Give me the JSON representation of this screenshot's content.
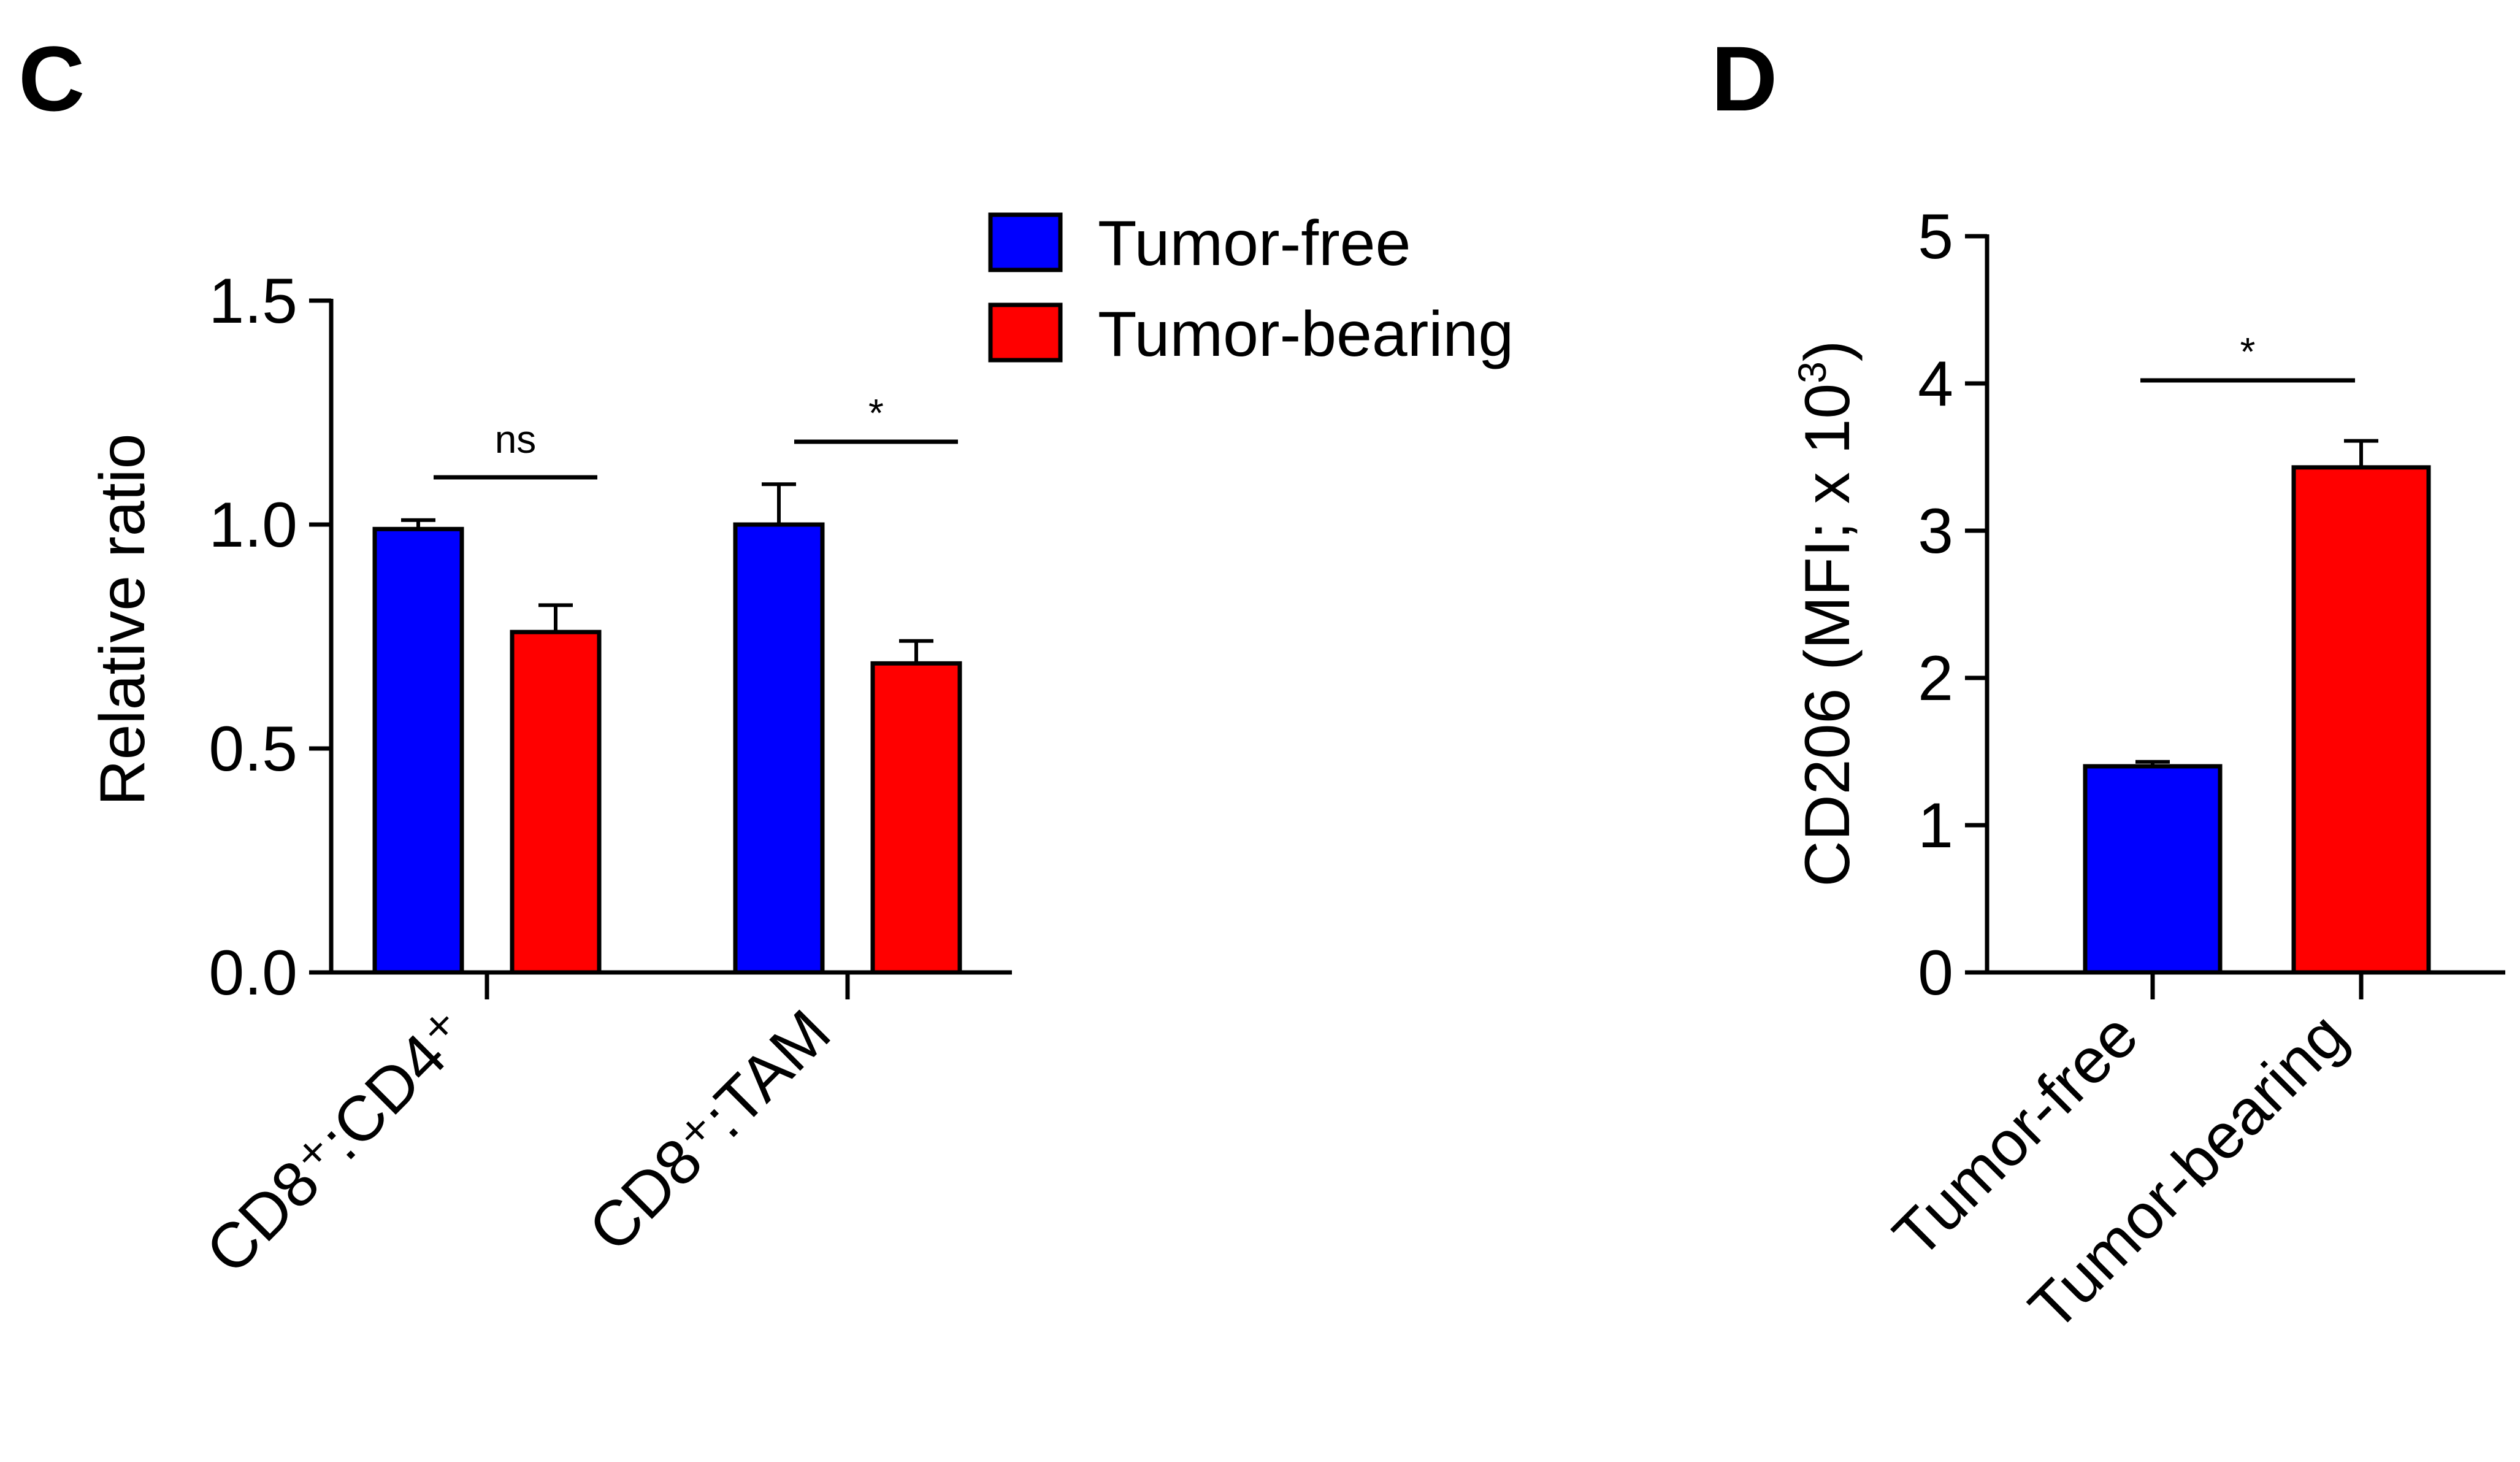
{
  "panels": [
    {
      "panel_label": "C",
      "legend": [
        {
          "label": "Tumor-free",
          "color": "#0000ff"
        },
        {
          "label": "Tumor-bearing",
          "color": "#ff0000"
        }
      ],
      "chart_data": {
        "type": "bar",
        "categories": [
          "CD8⁺:CD4⁺",
          "CD8⁺:TAM"
        ],
        "series": [
          {
            "name": "Tumor-free",
            "values": [
              0.99,
              1.0
            ],
            "errors": [
              0.02,
              0.09
            ],
            "color": "#0000ff"
          },
          {
            "name": "Tumor-bearing",
            "values": [
              0.76,
              0.69
            ],
            "errors": [
              0.06,
              0.05
            ],
            "color": "#ff0000"
          }
        ],
        "ylabel": "Relative ratio",
        "ylim": [
          0,
          1.5
        ],
        "yticks": [
          0.0,
          0.5,
          1.0,
          1.5
        ],
        "ytick_labels": [
          "0.0",
          "0.5",
          "1.0",
          "1.5"
        ],
        "significance": [
          "ns",
          "*"
        ]
      }
    },
    {
      "panel_label": "D",
      "chart_data": {
        "type": "bar",
        "categories": [
          "Tumor-free",
          "Tumor-bearing"
        ],
        "values": [
          1.4,
          3.43
        ],
        "errors": [
          0.03,
          0.18
        ],
        "colors": [
          "#0000ff",
          "#ff0000"
        ],
        "ylabel_main": "CD206 (MFI; x 10",
        "ylabel_sup": "3",
        "ylabel_end": ")",
        "ylim": [
          0,
          5
        ],
        "yticks": [
          0,
          1,
          2,
          3,
          4,
          5
        ],
        "ytick_labels": [
          "0",
          "1",
          "2",
          "3",
          "4",
          "5"
        ],
        "significance": [
          "*"
        ]
      }
    }
  ]
}
